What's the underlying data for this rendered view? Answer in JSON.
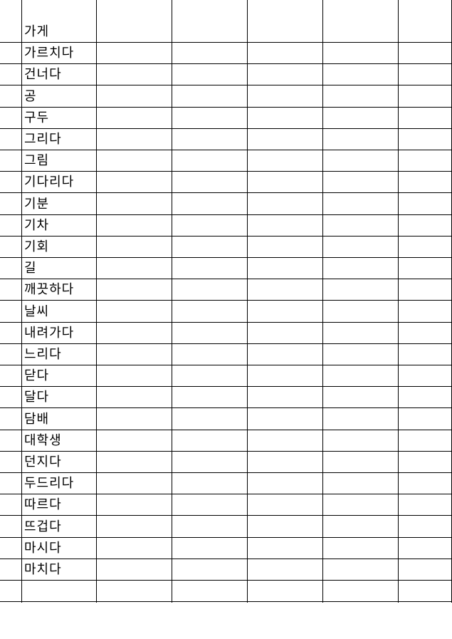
{
  "words": [
    "가게",
    "가르치다",
    "건너다",
    "공",
    "구두",
    "그리다",
    "그림",
    "기다리다",
    "기분",
    "기차",
    "기회",
    "길",
    "깨끗하다",
    "날씨",
    "내려가다",
    "느리다",
    "닫다",
    "달다",
    "담배",
    "대학생",
    "던지다",
    "두드리다",
    "따르다",
    "뜨겁다",
    "마시다",
    "마치다",
    ""
  ]
}
